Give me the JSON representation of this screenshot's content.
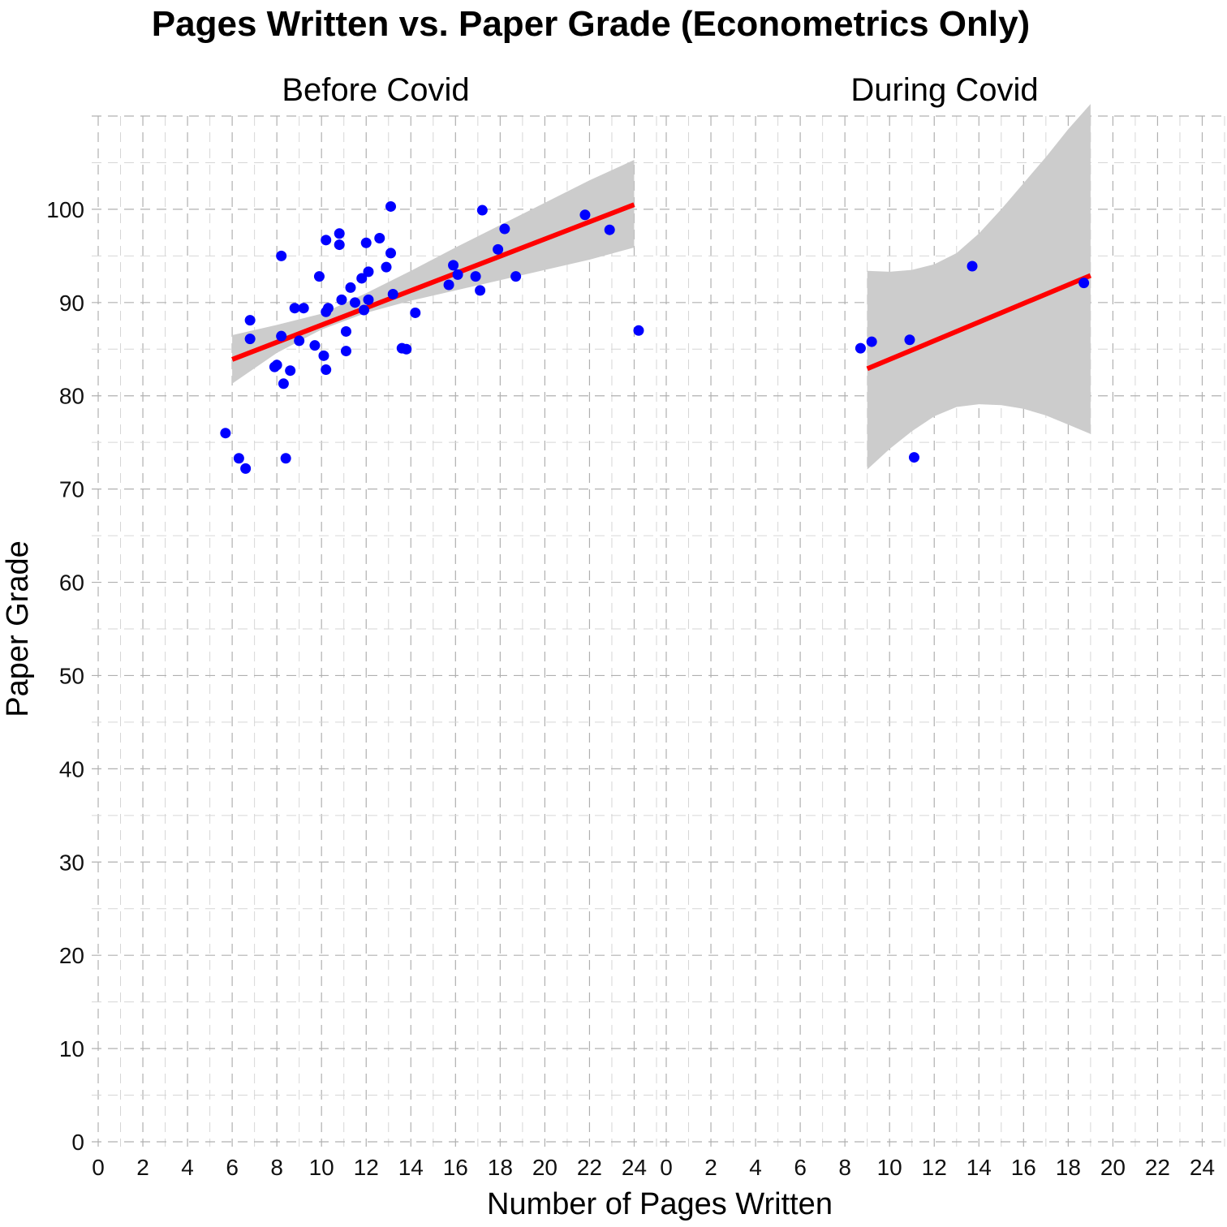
{
  "chart_data": {
    "type": "scatter",
    "title": "Pages Written vs. Paper Grade (Econometrics Only)",
    "xlabel": "Number of Pages Written",
    "ylabel": "Paper Grade",
    "xlim": [
      0,
      25
    ],
    "ylim": [
      0,
      110
    ],
    "x_ticks": [
      "0",
      "2",
      "4",
      "6",
      "8",
      "10",
      "12",
      "14",
      "16",
      "18",
      "20",
      "22",
      "24"
    ],
    "y_ticks": [
      "0",
      "10",
      "20",
      "30",
      "40",
      "50",
      "60",
      "70",
      "80",
      "90",
      "100"
    ],
    "grid": true,
    "colors": {
      "points": "#0000ff",
      "fit_line": "#ff0000",
      "ribbon": "#cccccc"
    },
    "panels": [
      {
        "name": "Before Covid",
        "points": [
          [
            5.7,
            76.0
          ],
          [
            6.3,
            73.3
          ],
          [
            6.6,
            72.2
          ],
          [
            6.8,
            86.1
          ],
          [
            6.8,
            88.1
          ],
          [
            7.9,
            83.1
          ],
          [
            8.0,
            83.3
          ],
          [
            8.2,
            95.0
          ],
          [
            8.2,
            86.4
          ],
          [
            8.3,
            81.3
          ],
          [
            8.4,
            73.3
          ],
          [
            8.6,
            82.7
          ],
          [
            8.8,
            89.4
          ],
          [
            9.0,
            85.9
          ],
          [
            9.2,
            89.4
          ],
          [
            9.7,
            85.4
          ],
          [
            9.9,
            92.8
          ],
          [
            10.1,
            84.3
          ],
          [
            10.2,
            82.8
          ],
          [
            10.2,
            96.7
          ],
          [
            10.2,
            89.0
          ],
          [
            10.3,
            89.4
          ],
          [
            10.8,
            97.4
          ],
          [
            10.8,
            96.2
          ],
          [
            10.9,
            90.3
          ],
          [
            11.1,
            84.8
          ],
          [
            11.1,
            86.9
          ],
          [
            11.3,
            91.6
          ],
          [
            11.5,
            90.0
          ],
          [
            11.8,
            92.6
          ],
          [
            11.9,
            89.2
          ],
          [
            12.0,
            96.4
          ],
          [
            12.1,
            90.3
          ],
          [
            12.1,
            93.3
          ],
          [
            12.6,
            96.9
          ],
          [
            12.9,
            93.8
          ],
          [
            13.1,
            95.3
          ],
          [
            13.1,
            100.3
          ],
          [
            13.2,
            90.9
          ],
          [
            13.6,
            85.1
          ],
          [
            13.8,
            85.0
          ],
          [
            14.2,
            88.9
          ],
          [
            15.7,
            91.9
          ],
          [
            15.9,
            94.0
          ],
          [
            16.1,
            93.0
          ],
          [
            16.9,
            92.8
          ],
          [
            17.1,
            91.3
          ],
          [
            17.2,
            99.9
          ],
          [
            17.9,
            95.7
          ],
          [
            18.2,
            97.9
          ],
          [
            18.7,
            92.8
          ],
          [
            21.8,
            99.4
          ],
          [
            22.9,
            97.8
          ],
          [
            24.2,
            87.0
          ]
        ],
        "fit": {
          "x0": 6.0,
          "y0": 83.9,
          "x1": 24.0,
          "y1": 100.5
        },
        "ribbon": [
          [
            6.0,
            81.3,
            86.5
          ],
          [
            8.0,
            84.6,
            87.6
          ],
          [
            10.0,
            87.1,
            88.8
          ],
          [
            12.0,
            88.9,
            91.0
          ],
          [
            14.0,
            90.2,
            93.4
          ],
          [
            16.0,
            91.3,
            95.9
          ],
          [
            18.0,
            92.4,
            98.3
          ],
          [
            20.0,
            93.5,
            100.7
          ],
          [
            22.0,
            94.6,
            103.1
          ],
          [
            24.0,
            95.9,
            105.3
          ]
        ]
      },
      {
        "name": "During Covid",
        "points": [
          [
            8.7,
            85.1
          ],
          [
            9.2,
            85.8
          ],
          [
            10.9,
            86.0
          ],
          [
            11.1,
            73.4
          ],
          [
            13.7,
            93.9
          ],
          [
            18.7,
            92.1
          ]
        ],
        "fit": {
          "x0": 9.0,
          "y0": 82.9,
          "x1": 19.0,
          "y1": 92.9
        },
        "ribbon": [
          [
            9.0,
            72.1,
            93.4
          ],
          [
            10.0,
            74.3,
            93.3
          ],
          [
            11.0,
            76.2,
            93.5
          ],
          [
            12.0,
            77.8,
            94.1
          ],
          [
            13.0,
            78.8,
            95.3
          ],
          [
            14.0,
            79.1,
            97.4
          ],
          [
            15.0,
            79.0,
            100.0
          ],
          [
            16.0,
            78.6,
            102.8
          ],
          [
            17.0,
            77.9,
            105.6
          ],
          [
            18.0,
            76.9,
            108.6
          ],
          [
            19.0,
            75.9,
            111.3
          ]
        ]
      }
    ]
  }
}
